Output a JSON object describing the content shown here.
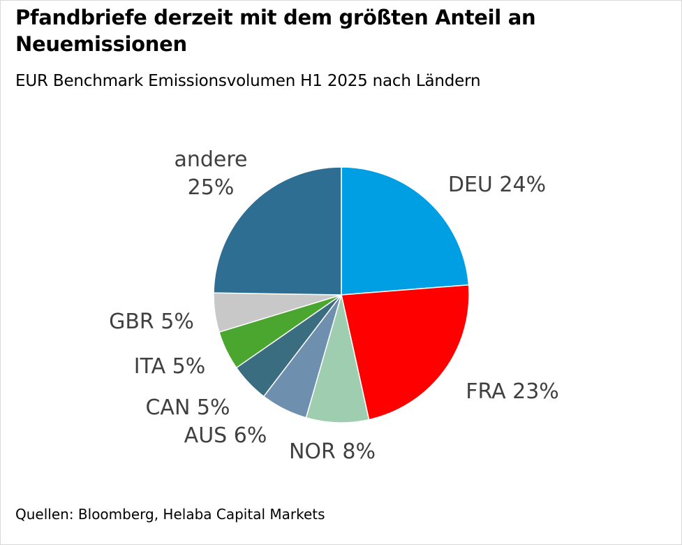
{
  "header": {
    "title": "Pfandbriefe derzeit mit dem größten Anteil an Neuemissionen",
    "subtitle": "EUR Benchmark Emissionsvolumen H1 2025 nach Ländern"
  },
  "footer": {
    "source": "Quellen: Bloomberg, Helaba Capital Markets"
  },
  "chart_data": {
    "type": "pie",
    "title": "Pfandbriefe derzeit mit dem größten Anteil an Neuemissionen",
    "subtitle": "EUR Benchmark Emissionsvolumen H1 2025 nach Ländern",
    "unit": "%",
    "slices": [
      {
        "label": "DEU",
        "value": 24,
        "text": "DEU 24%",
        "color": "#009fe3"
      },
      {
        "label": "FRA",
        "value": 23,
        "text": "FRA 23%",
        "color": "#ff0000"
      },
      {
        "label": "NOR",
        "value": 8,
        "text": "NOR 8%",
        "color": "#9fcdb0"
      },
      {
        "label": "AUS",
        "value": 6,
        "text": "AUS 6%",
        "color": "#6f8fae"
      },
      {
        "label": "CAN",
        "value": 5,
        "text": "CAN 5%",
        "color": "#3a6d80"
      },
      {
        "label": "ITA",
        "value": 5,
        "text": "ITA 5%",
        "color": "#4aa62f"
      },
      {
        "label": "GBR",
        "value": 5,
        "text": "GBR 5%",
        "color": "#c8c8c8"
      },
      {
        "label": "andere",
        "value": 25,
        "text_lines": [
          "andere",
          "25%"
        ],
        "color": "#2e6e93"
      }
    ],
    "legend": "none",
    "start": "12 o'clock",
    "direction": "clockwise"
  }
}
